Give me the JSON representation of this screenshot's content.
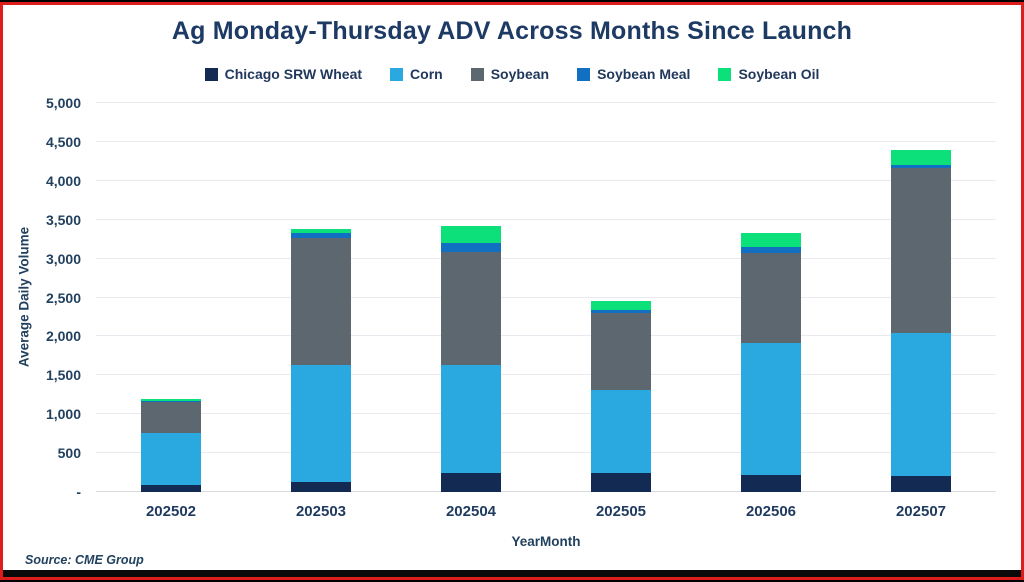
{
  "colors": {
    "frame_border": "#dd1c1c",
    "top_strip": "#000000",
    "bottom_strip": "#0a0a0a",
    "text_navy": "#1d3a64",
    "gridline": "#e9e9ef",
    "background": "#ffffff"
  },
  "chart_data": {
    "type": "bar",
    "stacked": true,
    "title": "Ag Monday-Thursday ADV Across Months Since Launch",
    "xlabel": "YearMonth",
    "ylabel": "Average Daily Volume",
    "source": "Source: CME Group",
    "legend_position": "top",
    "grid": true,
    "ylim": [
      0,
      5000
    ],
    "ytick_step": 500,
    "ytick_labels": [
      "-",
      "500",
      "1,000",
      "1,500",
      "2,000",
      "2,500",
      "3,000",
      "3,500",
      "4,000",
      "4,500",
      "5,000"
    ],
    "categories": [
      "202502",
      "202503",
      "202504",
      "202505",
      "202506",
      "202507"
    ],
    "series": [
      {
        "name": "Chicago SRW Wheat",
        "color": "#132b52",
        "values": [
          90,
          130,
          240,
          240,
          220,
          200
        ]
      },
      {
        "name": "Corn",
        "color": "#2aa9e0",
        "values": [
          665,
          1500,
          1390,
          1070,
          1700,
          1840
        ]
      },
      {
        "name": "Soybean",
        "color": "#5d6770",
        "values": [
          405,
          1630,
          1460,
          990,
          1150,
          2120
        ]
      },
      {
        "name": "Soybean Meal",
        "color": "#1170c2",
        "values": [
          10,
          70,
          110,
          40,
          85,
          45
        ]
      },
      {
        "name": "Soybean Oil",
        "color": "#0ce07a",
        "values": [
          30,
          50,
          215,
          110,
          180,
          190
        ]
      }
    ],
    "totals": [
      1200,
      3380,
      3415,
      2450,
      3335,
      4395
    ]
  }
}
